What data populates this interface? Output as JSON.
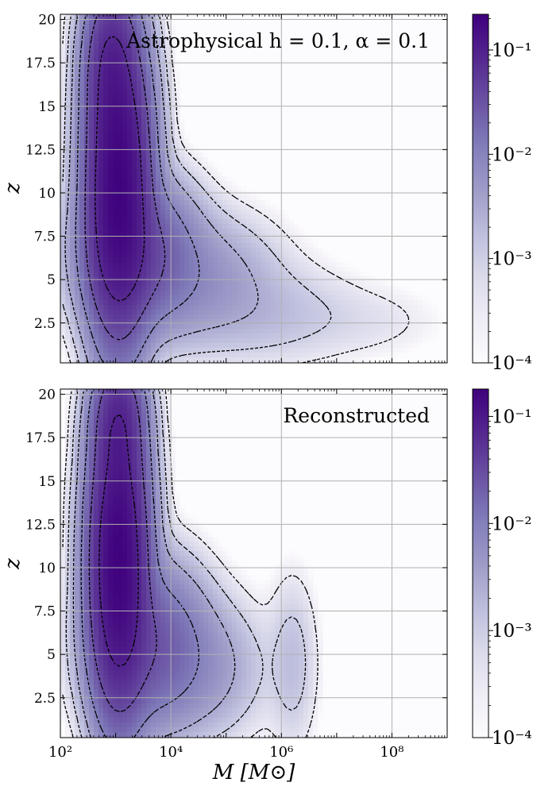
{
  "figure": {
    "colormap": [
      "#fcfbfd",
      "#efedf5",
      "#dadaeb",
      "#bcbddc",
      "#9e9ac8",
      "#807dba",
      "#6a51a3",
      "#54278f",
      "#3f007d"
    ],
    "contour_color": "#000000",
    "grid": true
  },
  "chart_data": [
    {
      "type": "heatmap",
      "panel": "top",
      "annotation": "Astrophysical  h = 0.1, α = 0.1",
      "xlabel": "",
      "ylabel": "z",
      "x_scale": "log",
      "xlim": [
        100,
        1000000000
      ],
      "ylim": [
        0.2,
        20.3
      ],
      "x_ticks": [],
      "y_ticks": [
        "2.5",
        "5",
        "7.5",
        "10",
        "12.5",
        "15",
        "17.5",
        "20"
      ],
      "colorbar": {
        "scale": "log",
        "range": [
          0.0001,
          0.22
        ],
        "tick_labels": [
          "10⁻¹",
          "10⁻²",
          "10⁻³",
          "10⁻⁴"
        ]
      },
      "density_blobs": [
        {
          "log10_M": 3.05,
          "z": 10.5,
          "sigma_logM": 0.3,
          "sigma_z": 4.5,
          "weight": 0.2
        },
        {
          "log10_M": 2.9,
          "z": 17.5,
          "sigma_logM": 0.25,
          "sigma_z": 2.5,
          "weight": 0.06
        },
        {
          "log10_M": 3.4,
          "z": 6.5,
          "sigma_logM": 0.55,
          "sigma_z": 2.2,
          "weight": 0.035
        },
        {
          "log10_M": 4.4,
          "z": 5.0,
          "sigma_logM": 0.8,
          "sigma_z": 2.0,
          "weight": 0.006
        },
        {
          "log10_M": 5.8,
          "z": 3.0,
          "sigma_logM": 0.9,
          "sigma_z": 1.6,
          "weight": 0.0015
        },
        {
          "log10_M": 7.6,
          "z": 2.6,
          "sigma_logM": 0.8,
          "sigma_z": 1.2,
          "weight": 0.0004
        }
      ]
    },
    {
      "type": "heatmap",
      "panel": "bottom",
      "annotation": "Reconstructed",
      "xlabel": "M [M⊙]",
      "ylabel": "z",
      "x_scale": "log",
      "xlim": [
        100,
        1000000000
      ],
      "ylim": [
        0.2,
        20.3
      ],
      "x_ticks": [
        "10²",
        "10⁴",
        "10⁶",
        "10⁸"
      ],
      "y_ticks": [
        "2.5",
        "5",
        "7.5",
        "10",
        "12.5",
        "15",
        "17.5",
        "20"
      ],
      "colorbar": {
        "scale": "log",
        "range": [
          0.0001,
          0.18
        ],
        "tick_labels": [
          "10⁻¹",
          "10⁻²",
          "10⁻³",
          "10⁻⁴"
        ]
      },
      "density_blobs": [
        {
          "log10_M": 3.05,
          "z": 10.5,
          "sigma_logM": 0.28,
          "sigma_z": 4.5,
          "weight": 0.17
        },
        {
          "log10_M": 3.05,
          "z": 18.5,
          "sigma_logM": 0.25,
          "sigma_z": 2.0,
          "weight": 0.05
        },
        {
          "log10_M": 3.6,
          "z": 5.5,
          "sigma_logM": 0.55,
          "sigma_z": 2.5,
          "weight": 0.025
        },
        {
          "log10_M": 4.6,
          "z": 4.2,
          "sigma_logM": 0.6,
          "sigma_z": 2.2,
          "weight": 0.004
        },
        {
          "log10_M": 6.2,
          "z": 4.5,
          "sigma_logM": 0.25,
          "sigma_z": 2.8,
          "weight": 0.0015
        }
      ]
    }
  ]
}
